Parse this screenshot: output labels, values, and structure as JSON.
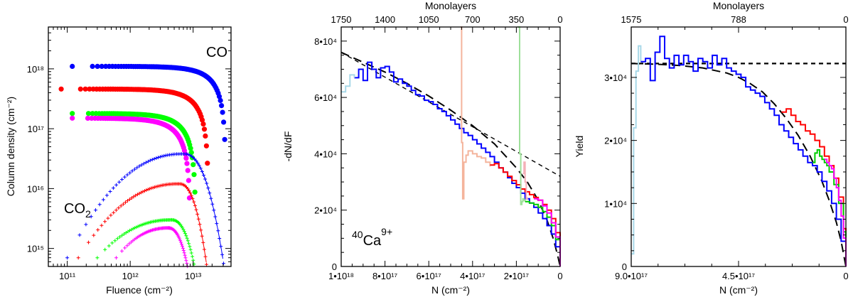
{
  "chart_data": [
    {
      "type": "scatter",
      "id": "left",
      "xlabel": "Fluence (cm⁻²)",
      "ylabel": "Column density (cm⁻²)",
      "xscale": "log",
      "yscale": "log",
      "xlim": [
        50000000000.0,
        40000000000000.0
      ],
      "ylim": [
        500000000000000.0,
        5e+18
      ],
      "xticks": [
        {
          "v": 100000000000.0,
          "label": "10¹¹"
        },
        {
          "v": 1000000000000.0,
          "label": "10¹²"
        },
        {
          "v": 10000000000000.0,
          "label": "10¹³"
        }
      ],
      "yticks": [
        {
          "v": 1000000000000000.0,
          "label": "10¹⁵"
        },
        {
          "v": 1e+16,
          "label": "10¹⁶"
        },
        {
          "v": 1e+17,
          "label": "10¹⁷"
        },
        {
          "v": 1e+18,
          "label": "10¹⁸"
        }
      ],
      "annotations": [
        {
          "text": "CO",
          "where": "top-right"
        },
        {
          "text": "CO",
          "sub": "2",
          "where": "bottom-left"
        }
      ],
      "series": [
        {
          "name": "CO blue",
          "marker": "dot",
          "color": "#0000ff",
          "N0": 1.1e+18,
          "F_end": 33000000000000.0,
          "x_start": 120000000000.0
        },
        {
          "name": "CO red",
          "marker": "dot",
          "color": "#ff0000",
          "N0": 4.6e+17,
          "F_end": 17500000000000.0,
          "x_start": 80000000000.0
        },
        {
          "name": "CO green",
          "marker": "dot",
          "color": "#00ff00",
          "N0": 1.8e+17,
          "F_end": 11000000000000.0,
          "x_start": 120000000000.0
        },
        {
          "name": "CO magenta",
          "marker": "dot",
          "color": "#ff00ff",
          "N0": 1.5e+17,
          "F_end": 9000000000000.0,
          "x_start": 120000000000.0
        },
        {
          "name": "CO2 blue",
          "marker": "plus",
          "color": "#0000ff",
          "peak_x": 7000000000000.0,
          "peak_y": 3.8e+16,
          "start_x": 100000000000.0,
          "start_y": 700000000000000.0,
          "end_x": 32000000000000.0
        },
        {
          "name": "CO2 red",
          "marker": "plus",
          "color": "#ff0000",
          "peak_x": 6000000000000.0,
          "peak_y": 1.2e+16,
          "start_x": 150000000000.0,
          "start_y": 700000000000000.0,
          "end_x": 17000000000000.0
        },
        {
          "name": "CO2 green",
          "marker": "plus",
          "color": "#00ff00",
          "peak_x": 4500000000000.0,
          "peak_y": 3000000000000000.0,
          "start_x": 300000000000.0,
          "start_y": 700000000000000.0,
          "end_x": 11000000000000.0
        },
        {
          "name": "CO2 magenta",
          "marker": "plus",
          "color": "#ff00ff",
          "peak_x": 4000000000000.0,
          "peak_y": 2200000000000000.0,
          "start_x": 600000000000.0,
          "start_y": 700000000000000.0,
          "end_x": 8500000000000.0
        }
      ]
    },
    {
      "type": "line",
      "id": "middle",
      "xlabel": "N (cm⁻²)",
      "ylabel": "-dN/dF",
      "top_label": "Monolayers",
      "xlim": [
        1e+18,
        0
      ],
      "ylim": [
        0,
        85000
      ],
      "xticks": [
        {
          "v": 1e+18,
          "label": "1•10¹⁸"
        },
        {
          "v": 8e+17,
          "label": "8•10¹⁷"
        },
        {
          "v": 6e+17,
          "label": "6•10¹⁷"
        },
        {
          "v": 4e+17,
          "label": "4•10¹⁷"
        },
        {
          "v": 2e+17,
          "label": "2•10¹⁷"
        },
        {
          "v": 0,
          "label": "0"
        }
      ],
      "top_ticks": [
        {
          "v": 1e+18,
          "label": "1750"
        },
        {
          "v": 8e+17,
          "label": "1400"
        },
        {
          "v": 6e+17,
          "label": "1050"
        },
        {
          "v": 4e+17,
          "label": "700"
        },
        {
          "v": 2e+17,
          "label": "350"
        },
        {
          "v": 0,
          "label": "0"
        }
      ],
      "yticks": [
        {
          "v": 0,
          "label": "0"
        },
        {
          "v": 20000,
          "label": "2•10⁴"
        },
        {
          "v": 40000,
          "label": "4•10⁴"
        },
        {
          "v": 60000,
          "label": "6•10⁴"
        },
        {
          "v": 80000,
          "label": "8•10⁴"
        }
      ],
      "annotation": {
        "text": "Ca",
        "pre": "40",
        "sup": "9+",
        "where": "bottom-left"
      },
      "series": [
        {
          "name": "fit (dashed, long)",
          "color": "#000000",
          "style": "longdash",
          "x": [
            1e+18,
            9e+17,
            8e+17,
            7e+17,
            6e+17,
            5e+17,
            4e+17,
            3e+17,
            2e+17,
            1.5e+17,
            1e+17,
            6e+16,
            3e+16,
            1e+16,
            0
          ],
          "y": [
            76000,
            72500,
            69000,
            65000,
            60500,
            55500,
            50000,
            43500,
            35000,
            30000,
            23500,
            16500,
            9500,
            3500,
            0
          ]
        },
        {
          "name": "linear (dashed)",
          "color": "#000000",
          "style": "dash",
          "x": [
            1e+18,
            0
          ],
          "y": [
            76000,
            32000
          ]
        },
        {
          "name": "blue",
          "color": "#0000ff",
          "x": [
            9.4e+17,
            9.2e+17,
            9e+17,
            8.8e+17,
            8.6e+17,
            8.4e+17,
            8.2e+17,
            8e+17,
            7.8e+17,
            7.6e+17,
            7.4e+17,
            7.2e+17,
            7e+17,
            6.8e+17,
            6.6e+17,
            6.4e+17,
            6.2e+17,
            6e+17,
            5.8e+17,
            5.6e+17,
            5.4e+17,
            5.2e+17,
            5e+17,
            4.8e+17,
            4.6e+17,
            4.4e+17,
            4.2e+17,
            4e+17,
            3.8e+17,
            3.6e+17,
            3.4e+17,
            3.2e+17,
            3e+17,
            2.8e+17,
            2.6e+17,
            2.4e+17,
            2.2e+17,
            2e+17,
            1.8e+17,
            1.6e+17,
            1.4e+17,
            1.2e+17,
            1e+17,
            8e+16,
            6e+16,
            4e+16,
            2e+16,
            0
          ],
          "y": [
            67000,
            70000,
            66000,
            72500,
            70000,
            67000,
            70500,
            71000,
            69000,
            65500,
            66500,
            65000,
            64000,
            62500,
            61000,
            60500,
            59000,
            58500,
            57500,
            56000,
            55000,
            53500,
            52000,
            50500,
            49000,
            47500,
            46500,
            45000,
            43500,
            42000,
            40500,
            39000,
            37000,
            35000,
            33500,
            31500,
            29500,
            28000,
            26000,
            24000,
            22500,
            21000,
            19000,
            17000,
            14500,
            11500,
            7000,
            0
          ]
        },
        {
          "name": "light blue",
          "color": "#a8d8e8",
          "x": [
            1e+18,
            9.8e+17,
            9.6e+17,
            9.4e+17
          ],
          "y": [
            62000,
            64000,
            68000,
            67000
          ]
        },
        {
          "name": "salmon",
          "color": "#f4b49c",
          "x": [
            4.55e+17,
            4.5e+17,
            4.45e+17,
            4.4e+17,
            4.3e+17,
            4.2e+17,
            4e+17,
            3.8e+17,
            3.6e+17,
            3.4e+17,
            3.2e+17
          ],
          "y": [
            85000,
            44000,
            24000,
            37000,
            39500,
            41000,
            40000,
            39000,
            38500,
            37000,
            35500
          ]
        },
        {
          "name": "red",
          "color": "#ff0000",
          "x": [
            3.2e+17,
            3e+17,
            2.8e+17,
            2.6e+17,
            2.4e+17,
            2.2e+17,
            2e+17,
            1.8e+17,
            1.6e+17,
            1.4e+17,
            1.2e+17,
            1e+17,
            8e+16,
            6e+16,
            4e+16,
            2e+16,
            0
          ],
          "y": [
            36000,
            36500,
            35000,
            33500,
            32000,
            30500,
            29000,
            27500,
            26500,
            25500,
            24500,
            23500,
            22000,
            20000,
            17000,
            12000,
            0
          ]
        },
        {
          "name": "light green",
          "color": "#9ee09a",
          "x": [
            1.95e+17,
            1.9e+17,
            1.85e+17,
            1.8e+17,
            1.75e+17,
            1.7e+17,
            1.65e+17,
            1.6e+17
          ],
          "y": [
            85000,
            85000,
            40000,
            22000,
            23000,
            24000,
            23500,
            23000
          ]
        },
        {
          "name": "pink",
          "color": "#f4b0b8",
          "x": [
            1.7e+17,
            1.65e+17,
            1.6e+17,
            1.55e+17,
            1.5e+17
          ],
          "y": [
            33000,
            37000,
            30000,
            24000,
            24500
          ]
        },
        {
          "name": "green",
          "color": "#00cc00",
          "x": [
            1.6e+17,
            1.4e+17,
            1.2e+17,
            1e+17,
            8e+16,
            6e+16,
            4e+16,
            2e+16,
            0
          ],
          "y": [
            23000,
            22500,
            22000,
            21000,
            19500,
            17500,
            14500,
            9500,
            0
          ]
        },
        {
          "name": "magenta",
          "color": "#ff00ff",
          "x": [
            1.2e+17,
            1e+17,
            8e+16,
            6e+16,
            4e+16,
            2e+16,
            0
          ],
          "y": [
            24000,
            23500,
            21500,
            19000,
            15500,
            10500,
            0
          ]
        }
      ]
    },
    {
      "type": "line",
      "id": "right",
      "xlabel": "N (cm⁻²)",
      "ylabel": "Yield",
      "top_label": "Monolayers",
      "xlim": [
        9e+17,
        0
      ],
      "ylim": [
        0,
        38000
      ],
      "xticks": [
        {
          "v": 9e+17,
          "label": "9.0•10¹⁷"
        },
        {
          "v": 4.5e+17,
          "label": "4.5•10¹⁷"
        },
        {
          "v": 0,
          "label": "0"
        }
      ],
      "top_ticks": [
        {
          "v": 9e+17,
          "label": "1575"
        },
        {
          "v": 4.5e+17,
          "label": "788"
        },
        {
          "v": 0,
          "label": "0"
        }
      ],
      "yticks": [
        {
          "v": 0,
          "label": "0"
        },
        {
          "v": 10000,
          "label": "1•10⁴"
        },
        {
          "v": 20000,
          "label": "2•10⁴"
        },
        {
          "v": 30000,
          "label": "3•10⁴"
        }
      ],
      "series": [
        {
          "name": "constant (dashed)",
          "color": "#000000",
          "style": "dash",
          "x": [
            9e+17,
            0
          ],
          "y": [
            32200,
            32200
          ]
        },
        {
          "name": "fit (dashed, long)",
          "color": "#000000",
          "style": "longdash",
          "x": [
            9e+17,
            8e+17,
            7e+17,
            6e+17,
            5e+17,
            4.5e+17,
            4e+17,
            3.5e+17,
            3e+17,
            2.5e+17,
            2e+17,
            1.5e+17,
            1e+17,
            7e+16,
            4e+16,
            2e+16,
            0
          ],
          "y": [
            32200,
            32100,
            31900,
            31500,
            30700,
            30000,
            29000,
            27700,
            25800,
            23500,
            20800,
            17500,
            13500,
            10500,
            7000,
            4000,
            0
          ]
        },
        {
          "name": "light blue",
          "color": "#a8d8e8",
          "x": [
            9e+17,
            8.9e+17,
            8.8e+17,
            8.7e+17,
            8.6e+17
          ],
          "y": [
            2000,
            22000,
            31000,
            35000,
            32500
          ]
        },
        {
          "name": "blue",
          "color": "#0000ff",
          "x": [
            8.6e+17,
            8.4e+17,
            8.2e+17,
            8e+17,
            7.8e+17,
            7.6e+17,
            7.4e+17,
            7.2e+17,
            7e+17,
            6.8e+17,
            6.6e+17,
            6.4e+17,
            6.2e+17,
            6e+17,
            5.8e+17,
            5.6e+17,
            5.4e+17,
            5.2e+17,
            5e+17,
            4.8e+17,
            4.6e+17,
            4.4e+17,
            4.2e+17,
            4e+17,
            3.8e+17,
            3.6e+17,
            3.4e+17,
            3.2e+17,
            3e+17,
            2.8e+17,
            2.6e+17,
            2.4e+17,
            2.2e+17,
            2e+17,
            1.8e+17,
            1.6e+17,
            1.4e+17,
            1.2e+17,
            1e+17,
            8e+16,
            6e+16,
            4e+16,
            2e+16,
            0
          ],
          "y": [
            32500,
            33000,
            29500,
            34000,
            36500,
            33000,
            31500,
            33500,
            32000,
            33500,
            32500,
            31000,
            33000,
            32500,
            31500,
            33500,
            32000,
            33000,
            31500,
            31000,
            30500,
            30000,
            28500,
            28000,
            27500,
            27000,
            26000,
            25000,
            24000,
            22500,
            21500,
            20500,
            19500,
            18500,
            17500,
            16500,
            16000,
            15000,
            13500,
            12000,
            10000,
            7500,
            4000,
            0
          ]
        },
        {
          "name": "red",
          "color": "#ff0000",
          "x": [
            2.7e+17,
            2.5e+17,
            2.3e+17,
            2.1e+17,
            1.9e+17,
            1.7e+17,
            1.5e+17,
            1.3e+17,
            1.1e+17,
            9e+16,
            7e+16,
            5e+16,
            3e+16,
            1e+16,
            0
          ],
          "y": [
            24500,
            25000,
            24000,
            23000,
            22500,
            21500,
            21000,
            20000,
            19000,
            17500,
            16000,
            14000,
            11000,
            6000,
            0
          ]
        },
        {
          "name": "green",
          "color": "#00cc00",
          "x": [
            1.4e+17,
            1.3e+17,
            1.2e+17,
            1.1e+17,
            1e+17,
            9e+16,
            8e+16,
            7e+16,
            5e+16,
            3e+16,
            1e+16,
            0
          ],
          "y": [
            16500,
            18000,
            18500,
            17500,
            17000,
            16500,
            16000,
            15000,
            13000,
            10000,
            5500,
            0
          ]
        },
        {
          "name": "magenta",
          "color": "#ff00ff",
          "x": [
            9e+16,
            8e+16,
            7e+16,
            6e+16,
            5e+16,
            4e+16,
            3e+16,
            2e+16,
            1e+16,
            0
          ],
          "y": [
            17000,
            16500,
            16000,
            15500,
            14000,
            12500,
            10500,
            8000,
            4500,
            0
          ]
        }
      ]
    }
  ]
}
